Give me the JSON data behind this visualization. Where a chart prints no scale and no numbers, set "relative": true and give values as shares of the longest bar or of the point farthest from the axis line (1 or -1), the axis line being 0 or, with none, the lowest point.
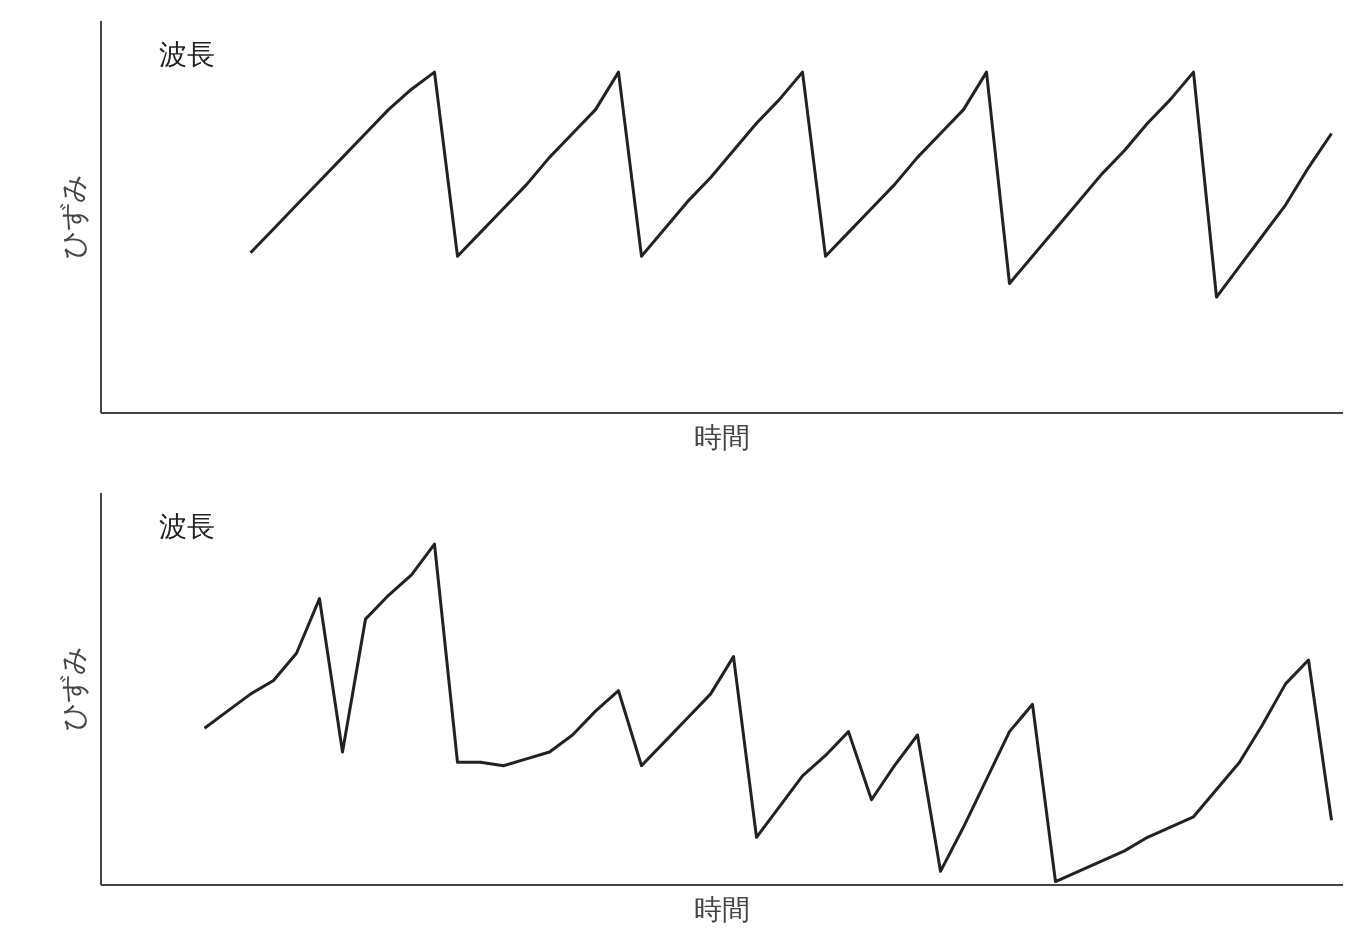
{
  "chart_data": [
    {
      "type": "line",
      "relative": true,
      "annotations": [
        "波長"
      ],
      "ylabel": "ひずみ",
      "xlabel": "時間",
      "categories": [
        null,
        null,
        null,
        null,
        null,
        null,
        null,
        null,
        null,
        null,
        null,
        null,
        null,
        null,
        null,
        null,
        null,
        null,
        null,
        null,
        null,
        null,
        null,
        null,
        null,
        null,
        null,
        null,
        null,
        null,
        null,
        null,
        null,
        null,
        null,
        null,
        null,
        null,
        null,
        null,
        null,
        null,
        null,
        null,
        null,
        null,
        null,
        null,
        null,
        null,
        null,
        null,
        null,
        null
      ],
      "series": [
        {
          "color": "#222222",
          "values": [
            null,
            null,
            null,
            null,
            null,
            null,
            0.47,
            0.54,
            0.61,
            0.68,
            0.75,
            0.82,
            0.89,
            0.95,
            1.0,
            0.46,
            0.53,
            0.6,
            0.67,
            0.75,
            0.82,
            0.89,
            1.0,
            0.46,
            0.54,
            0.62,
            0.69,
            0.77,
            0.85,
            0.92,
            1.0,
            0.46,
            0.53,
            0.6,
            0.67,
            0.75,
            0.82,
            0.89,
            1.0,
            0.38,
            0.46,
            0.54,
            0.62,
            0.7,
            0.77,
            0.85,
            0.92,
            1.0,
            0.34,
            0.43,
            0.52,
            0.61,
            0.72,
            0.82
          ]
        }
      ]
    },
    {
      "type": "line",
      "relative": true,
      "annotations": [
        "波長"
      ],
      "ylabel": "ひずみ",
      "xlabel": "時間",
      "categories": [
        null,
        null,
        null,
        null,
        null,
        null,
        null,
        null,
        null,
        null,
        null,
        null,
        null,
        null,
        null,
        null,
        null,
        null,
        null,
        null,
        null,
        null,
        null,
        null,
        null,
        null,
        null,
        null,
        null,
        null,
        null,
        null,
        null,
        null,
        null,
        null,
        null,
        null,
        null,
        null,
        null,
        null,
        null,
        null,
        null,
        null,
        null,
        null,
        null,
        null,
        null,
        null,
        null,
        null
      ],
      "series": [
        {
          "color": "#222222",
          "values": [
            null,
            null,
            null,
            null,
            0.46,
            0.51,
            0.56,
            0.6,
            0.68,
            0.84,
            0.39,
            0.78,
            0.85,
            0.91,
            1.0,
            0.36,
            0.36,
            0.35,
            0.37,
            0.39,
            0.44,
            0.51,
            0.57,
            0.35,
            0.42,
            0.49,
            0.56,
            0.67,
            0.14,
            0.23,
            0.32,
            0.38,
            0.45,
            0.25,
            0.35,
            0.44,
            0.04,
            0.17,
            0.31,
            0.45,
            0.53,
            0.01,
            0.04,
            0.07,
            0.1,
            0.14,
            0.17,
            0.2,
            0.28,
            0.36,
            0.47,
            0.59,
            0.66,
            0.19
          ]
        }
      ]
    }
  ]
}
